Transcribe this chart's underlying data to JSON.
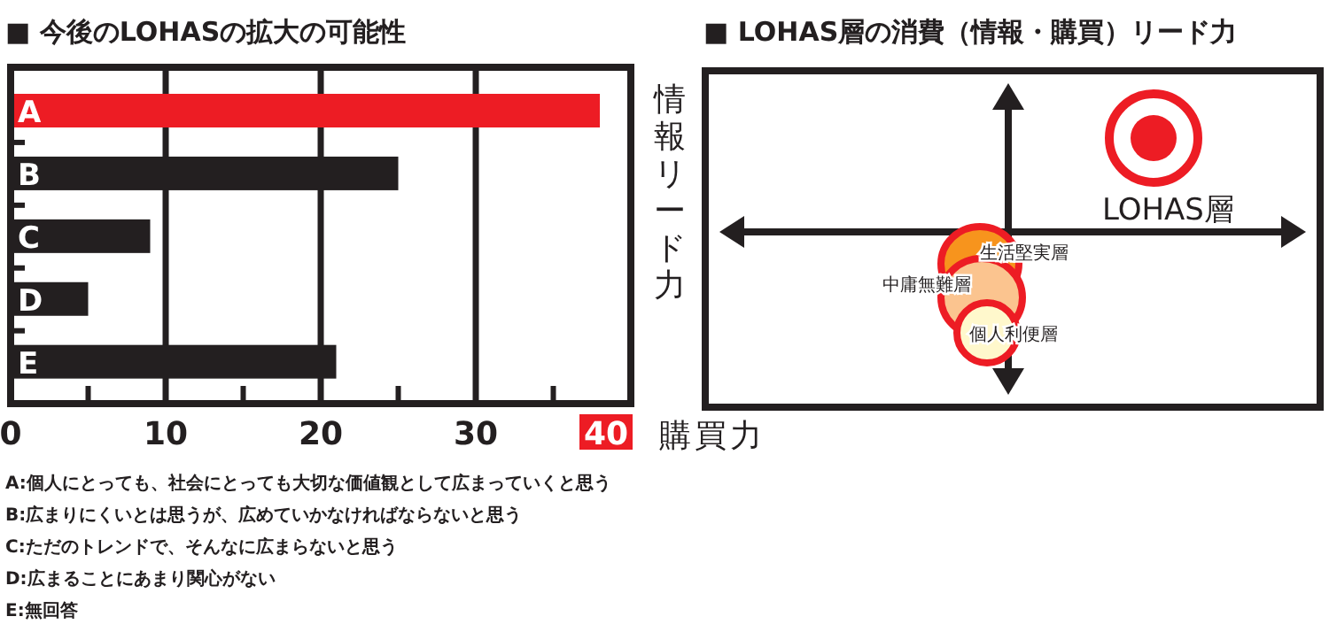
{
  "chart_data": [
    {
      "type": "bar",
      "orientation": "horizontal",
      "title": "■ 今後のLOHASの拡大の可能性",
      "categories": [
        "A",
        "B",
        "C",
        "D",
        "E"
      ],
      "values": [
        38,
        25,
        9,
        5,
        21
      ],
      "colors": [
        "#ed1c24",
        "#231f20",
        "#231f20",
        "#231f20",
        "#231f20"
      ],
      "xlim": [
        0,
        40
      ],
      "xticks": [
        0,
        {
          "value": 5,
          "label": null
        },
        10,
        {
          "value": 15,
          "label": null
        },
        20,
        {
          "value": 25,
          "label": null
        },
        30,
        {
          "value": 35,
          "label": null
        },
        40
      ],
      "grid": "x",
      "annotations": [
        "A:個人にとっても、社会にとっても大切な価値観として広まっていくと思う",
        "B:広まりにくいとは思うが、広めていかなければならないと思う",
        "C:ただのトレンドで、そんなに広まらないと思う",
        "D:広まることにあまり関心がない",
        "E:無回答"
      ]
    },
    {
      "type": "other",
      "title": "■ LOHAS層の消費（情報・購買）リード力",
      "xlabel": "購買力",
      "ylabel": "情報リード力",
      "annotations": [
        "LOHAS層",
        "生活堅実層",
        "中庸無難層",
        "個人利便層"
      ]
    }
  ]
}
